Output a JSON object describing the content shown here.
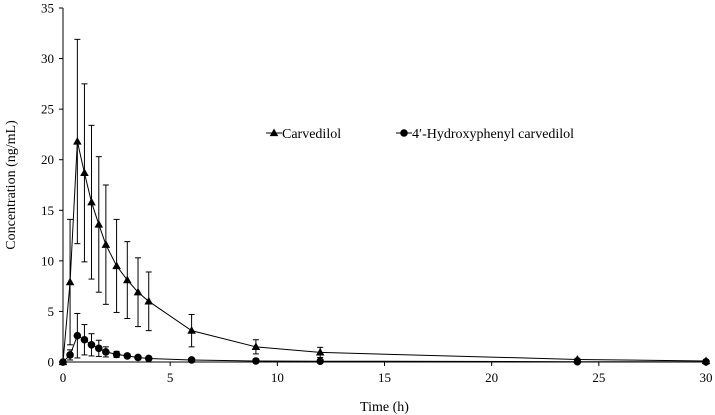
{
  "chart_data": {
    "type": "line",
    "title": "",
    "xlabel": "Time (h)",
    "ylabel": "Concentration (ng/mL)",
    "xlim": [
      0,
      30
    ],
    "ylim": [
      0,
      35
    ],
    "xticks": [
      0,
      5,
      10,
      15,
      20,
      25,
      30
    ],
    "yticks": [
      0,
      5,
      10,
      15,
      20,
      25,
      30,
      35
    ],
    "grid": false,
    "legend_position": "center-right",
    "series": [
      {
        "name": "Carvedilol",
        "marker": "triangle",
        "color": "#000000",
        "x": [
          0,
          0.33,
          0.67,
          1,
          1.33,
          1.67,
          2,
          2.5,
          3,
          3.5,
          4,
          6,
          9,
          12,
          24,
          30
        ],
        "y": [
          0,
          7.9,
          21.8,
          18.7,
          15.8,
          13.6,
          11.6,
          9.5,
          8.1,
          6.9,
          6.0,
          3.1,
          1.5,
          0.95,
          0.25,
          0.1
        ],
        "error": [
          0,
          6.2,
          10.1,
          8.8,
          7.6,
          6.7,
          5.9,
          4.6,
          3.8,
          3.4,
          2.9,
          1.6,
          0.7,
          0.5,
          0.12,
          0.08
        ]
      },
      {
        "name": "4′-Hydroxyphenyl carvedilol",
        "marker": "circle",
        "color": "#000000",
        "x": [
          0,
          0.33,
          0.67,
          1,
          1.33,
          1.67,
          2,
          2.5,
          3,
          3.5,
          4,
          6,
          9,
          12,
          24,
          30
        ],
        "y": [
          0,
          0.7,
          2.6,
          2.2,
          1.7,
          1.35,
          1.0,
          0.75,
          0.6,
          0.45,
          0.35,
          0.2,
          0.1,
          0.08,
          0.03,
          0.02
        ],
        "error": [
          0,
          0.5,
          2.2,
          1.5,
          1.1,
          0.8,
          0.5,
          0.3,
          0.2,
          0.15,
          0.1,
          0.05,
          0.03,
          0.02,
          0.01,
          0.01
        ]
      }
    ]
  }
}
